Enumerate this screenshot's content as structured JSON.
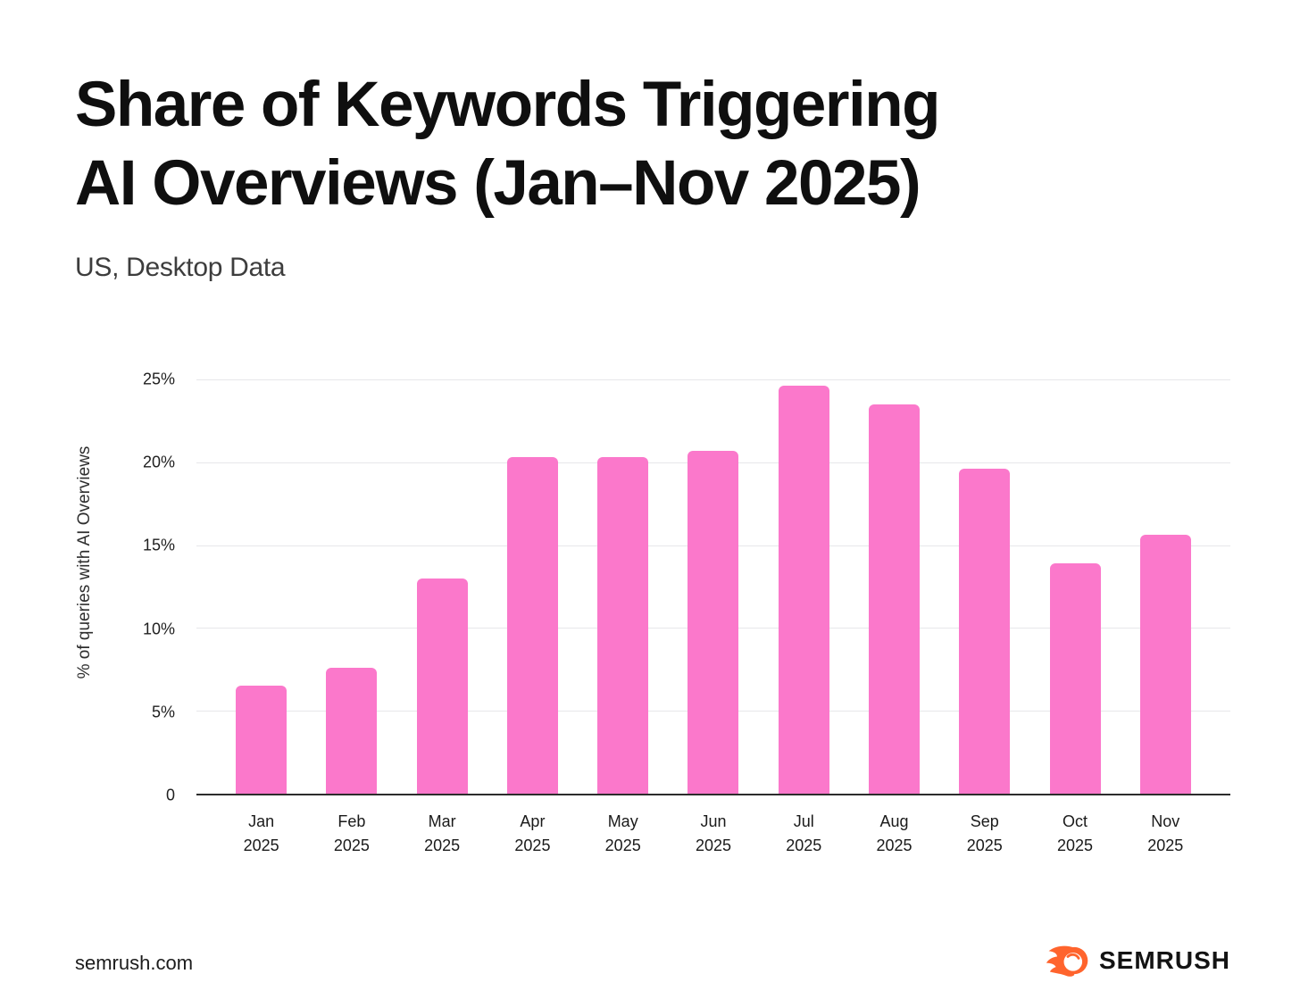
{
  "header": {
    "title": "Share of Keywords Triggering\nAI Overviews (Jan–Nov 2025)",
    "subtitle": "US, Desktop Data"
  },
  "chart_data": {
    "type": "bar",
    "categories": [
      "Jan 2025",
      "Feb 2025",
      "Mar 2025",
      "Apr 2025",
      "May 2025",
      "Jun 2025",
      "Jul 2025",
      "Aug 2025",
      "Sep 2025",
      "Oct 2025",
      "Nov 2025"
    ],
    "values": [
      6.5,
      7.6,
      13.0,
      20.3,
      20.3,
      20.7,
      24.6,
      23.5,
      19.6,
      13.9,
      15.6
    ],
    "title": "Share of Keywords Triggering AI Overviews (Jan–Nov 2025)",
    "subtitle": "US, Desktop Data",
    "xlabel": "",
    "ylabel": "% of queries with AI Overviews",
    "ylim": [
      0,
      25
    ],
    "yticks": [
      {
        "label": "25%",
        "value": 25
      },
      {
        "label": "20%",
        "value": 20
      },
      {
        "label": "15%",
        "value": 15
      },
      {
        "label": "10%",
        "value": 10
      },
      {
        "label": "5%",
        "value": 5
      },
      {
        "label": "0",
        "value": 0
      }
    ],
    "grid": "horizontal",
    "legend": "none",
    "bar_color": "#FB78CB"
  },
  "footer": {
    "website": "semrush.com",
    "logo_text": "SEMRUSH"
  },
  "colors": {
    "bar": "#FB78CB",
    "logo_orange": "#FF642D",
    "title_text": "#0F0F0F",
    "subtitle_text": "#3D3D3D",
    "grid": "#E7E7EA",
    "axis": "#2C2C2C"
  },
  "icons": {
    "logo": "semrush-flame-icon"
  }
}
